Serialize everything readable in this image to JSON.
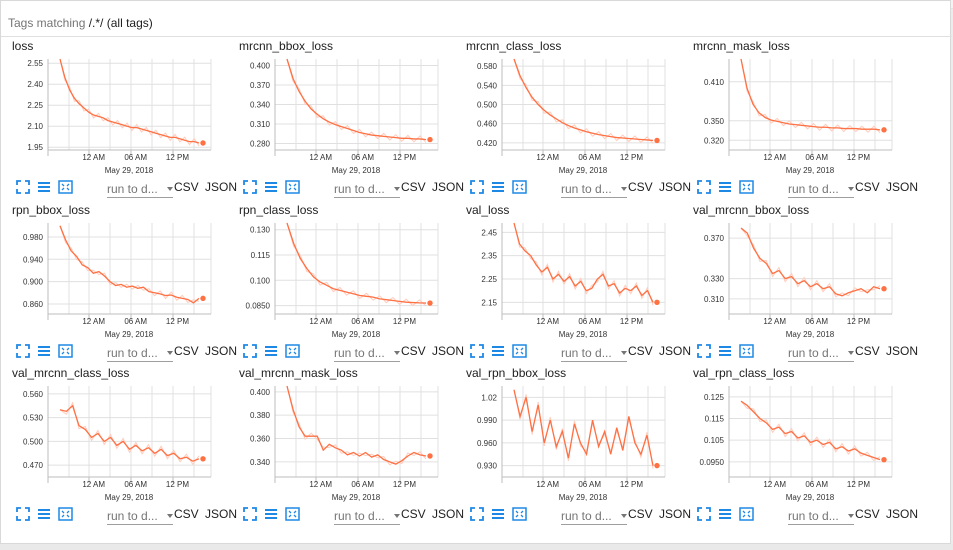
{
  "header": {
    "label_prefix": "Tags matching ",
    "regex": "/.*/",
    "suffix": "(all tags)"
  },
  "toolbar": {
    "run_select": "run to d...",
    "csv": "CSV",
    "json": "JSON"
  },
  "colors": {
    "line": "#ff7043",
    "raw": "#ffccbc",
    "grid": "#e0e0e0"
  },
  "icons": {
    "expand": "expand-icon",
    "lines": "toggle-lines-icon",
    "fit": "fit-domain-icon"
  },
  "charts": [
    {
      "title": "loss",
      "x_date": "May 29, 2018",
      "x_ticks": [
        "12 AM",
        "06 AM",
        "12 PM"
      ],
      "y_ticks": [
        "2.55",
        "2.40",
        "2.25",
        "2.10",
        "1.95"
      ],
      "y_range": [
        1.93,
        2.58
      ]
    },
    {
      "title": "mrcnn_bbox_loss",
      "x_date": "May 29, 2018",
      "x_ticks": [
        "12 AM",
        "06 AM",
        "12 PM"
      ],
      "y_ticks": [
        "0.400",
        "0.370",
        "0.340",
        "0.310",
        "0.280"
      ],
      "y_range": [
        0.27,
        0.41
      ]
    },
    {
      "title": "mrcnn_class_loss",
      "x_date": "May 29, 2018",
      "x_ticks": [
        "12 AM",
        "06 AM",
        "12 PM"
      ],
      "y_ticks": [
        "0.580",
        "0.540",
        "0.500",
        "0.460",
        "0.420"
      ],
      "y_range": [
        0.405,
        0.595
      ]
    },
    {
      "title": "mrcnn_mask_loss",
      "x_date": "May 29, 2018",
      "x_ticks": [
        "12 AM",
        "06 AM",
        "12 PM"
      ],
      "y_ticks": [
        "0.410",
        "0.350",
        "0.320"
      ],
      "y_range": [
        0.305,
        0.445
      ]
    },
    {
      "title": "rpn_bbox_loss",
      "x_date": "May 29, 2018",
      "x_ticks": [
        "12 AM",
        "06 AM",
        "12 PM"
      ],
      "y_ticks": [
        "0.980",
        "0.940",
        "0.900",
        "0.860"
      ],
      "y_range": [
        0.842,
        1.005
      ]
    },
    {
      "title": "rpn_class_loss",
      "x_date": "May 29, 2018",
      "x_ticks": [
        "12 AM",
        "06 AM",
        "12 PM"
      ],
      "y_ticks": [
        "0.130",
        "0.115",
        "0.100",
        "0.0850"
      ],
      "y_range": [
        0.08,
        0.134
      ]
    },
    {
      "title": "val_loss",
      "x_date": "May 29, 2018",
      "x_ticks": [
        "12 AM",
        "06 AM",
        "12 PM"
      ],
      "y_ticks": [
        "2.45",
        "2.35",
        "2.25",
        "2.15"
      ],
      "y_range": [
        2.1,
        2.49
      ]
    },
    {
      "title": "val_mrcnn_bbox_loss",
      "x_date": "May 29, 2018",
      "x_ticks": [
        "12 AM",
        "06 AM",
        "12 PM"
      ],
      "y_ticks": [
        "0.370",
        "0.330",
        "0.310"
      ],
      "y_range": [
        0.295,
        0.385
      ]
    },
    {
      "title": "val_mrcnn_class_loss",
      "x_date": "May 29, 2018",
      "x_ticks": [
        "12 AM",
        "06 AM",
        "12 PM"
      ],
      "y_ticks": [
        "0.560",
        "0.530",
        "0.500",
        "0.470"
      ],
      "y_range": [
        0.455,
        0.57
      ]
    },
    {
      "title": "val_mrcnn_mask_loss",
      "x_date": "May 29, 2018",
      "x_ticks": [
        "12 AM",
        "06 AM",
        "12 PM"
      ],
      "y_ticks": [
        "0.400",
        "0.380",
        "0.360",
        "0.340"
      ],
      "y_range": [
        0.327,
        0.405
      ]
    },
    {
      "title": "val_rpn_bbox_loss",
      "x_date": "May 29, 2018",
      "x_ticks": [
        "12 AM",
        "06 AM",
        "12 PM"
      ],
      "y_ticks": [
        "1.02",
        "0.990",
        "0.960",
        "0.930"
      ],
      "y_range": [
        0.915,
        1.035
      ]
    },
    {
      "title": "val_rpn_class_loss",
      "x_date": "May 29, 2018",
      "x_ticks": [
        "12 AM",
        "06 AM",
        "12 PM"
      ],
      "y_ticks": [
        "0.125",
        "0.115",
        "0.105",
        "0.0950"
      ],
      "y_range": [
        0.088,
        0.13
      ]
    }
  ],
  "chart_data": [
    {
      "type": "line",
      "title": "loss",
      "xlabel": "May 29, 2018",
      "ylim": [
        1.93,
        2.58
      ],
      "series": [
        {
          "values": [
            2.58,
            2.45,
            2.36,
            2.3,
            2.26,
            2.23,
            2.2,
            2.18,
            2.17,
            2.16,
            2.14,
            2.13,
            2.12,
            2.11,
            2.1,
            2.09,
            2.09,
            2.08,
            2.07,
            2.06,
            2.05,
            2.04,
            2.03,
            2.02,
            2.02,
            2.01,
            2.0,
            1.99,
            1.99,
            1.98
          ]
        }
      ]
    },
    {
      "type": "line",
      "title": "mrcnn_bbox_loss",
      "xlabel": "May 29, 2018",
      "ylim": [
        0.27,
        0.41
      ],
      "series": [
        {
          "values": [
            0.41,
            0.38,
            0.36,
            0.345,
            0.333,
            0.325,
            0.318,
            0.313,
            0.309,
            0.306,
            0.303,
            0.3,
            0.297,
            0.295,
            0.293,
            0.292,
            0.291,
            0.29,
            0.289,
            0.288,
            0.288,
            0.287,
            0.287,
            0.286
          ]
        }
      ]
    },
    {
      "type": "line",
      "title": "mrcnn_class_loss",
      "xlabel": "May 29, 2018",
      "ylim": [
        0.405,
        0.595
      ],
      "series": [
        {
          "values": [
            0.595,
            0.56,
            0.535,
            0.515,
            0.5,
            0.488,
            0.478,
            0.47,
            0.462,
            0.456,
            0.451,
            0.447,
            0.443,
            0.44,
            0.437,
            0.435,
            0.433,
            0.431,
            0.43,
            0.429,
            0.428,
            0.427,
            0.426,
            0.425
          ]
        }
      ]
    },
    {
      "type": "line",
      "title": "mrcnn_mask_loss",
      "xlabel": "May 29, 2018",
      "ylim": [
        0.305,
        0.445
      ],
      "series": [
        {
          "values": [
            0.445,
            0.4,
            0.375,
            0.362,
            0.355,
            0.351,
            0.349,
            0.347,
            0.345,
            0.344,
            0.343,
            0.342,
            0.341,
            0.34,
            0.34,
            0.339,
            0.339,
            0.338,
            0.338,
            0.338,
            0.337,
            0.337,
            0.337,
            0.336
          ]
        }
      ]
    },
    {
      "type": "line",
      "title": "rpn_bbox_loss",
      "xlabel": "May 29, 2018",
      "ylim": [
        0.842,
        1.005
      ],
      "series": [
        {
          "values": [
            1.0,
            0.975,
            0.955,
            0.945,
            0.93,
            0.925,
            0.915,
            0.918,
            0.91,
            0.9,
            0.893,
            0.895,
            0.89,
            0.892,
            0.888,
            0.89,
            0.882,
            0.88,
            0.878,
            0.875,
            0.876,
            0.872,
            0.87,
            0.868,
            0.862,
            0.87
          ]
        }
      ]
    },
    {
      "type": "line",
      "title": "rpn_class_loss",
      "xlabel": "May 29, 2018",
      "ylim": [
        0.08,
        0.134
      ],
      "series": [
        {
          "values": [
            0.134,
            0.122,
            0.113,
            0.107,
            0.102,
            0.099,
            0.097,
            0.095,
            0.094,
            0.093,
            0.092,
            0.091,
            0.0905,
            0.09,
            0.089,
            0.0885,
            0.088,
            0.0875,
            0.087,
            0.0868,
            0.0866,
            0.0865
          ]
        }
      ]
    },
    {
      "type": "line",
      "title": "val_loss",
      "xlabel": "May 29, 2018",
      "ylim": [
        2.1,
        2.49
      ],
      "series": [
        {
          "values": [
            2.49,
            2.4,
            2.37,
            2.35,
            2.31,
            2.28,
            2.3,
            2.25,
            2.27,
            2.24,
            2.26,
            2.22,
            2.24,
            2.2,
            2.21,
            2.25,
            2.27,
            2.22,
            2.23,
            2.19,
            2.21,
            2.2,
            2.22,
            2.18,
            2.2,
            2.15
          ]
        }
      ]
    },
    {
      "type": "line",
      "title": "val_mrcnn_bbox_loss",
      "xlabel": "May 29, 2018",
      "ylim": [
        0.295,
        0.385
      ],
      "series": [
        {
          "values": [
            0.38,
            0.375,
            0.36,
            0.35,
            0.345,
            0.335,
            0.338,
            0.33,
            0.332,
            0.325,
            0.328,
            0.322,
            0.325,
            0.32,
            0.322,
            0.315,
            0.313,
            0.316,
            0.318,
            0.32,
            0.316,
            0.322,
            0.32
          ]
        }
      ]
    },
    {
      "type": "line",
      "title": "val_mrcnn_class_loss",
      "xlabel": "May 29, 2018",
      "ylim": [
        0.455,
        0.57
      ],
      "series": [
        {
          "values": [
            0.54,
            0.538,
            0.545,
            0.52,
            0.515,
            0.505,
            0.51,
            0.5,
            0.505,
            0.495,
            0.5,
            0.49,
            0.495,
            0.488,
            0.492,
            0.485,
            0.49,
            0.482,
            0.485,
            0.478,
            0.48,
            0.475,
            0.478
          ]
        }
      ]
    },
    {
      "type": "line",
      "title": "val_mrcnn_mask_loss",
      "xlabel": "May 29, 2018",
      "ylim": [
        0.327,
        0.405
      ],
      "series": [
        {
          "values": [
            0.405,
            0.385,
            0.37,
            0.362,
            0.362,
            0.362,
            0.35,
            0.355,
            0.352,
            0.35,
            0.346,
            0.348,
            0.345,
            0.348,
            0.344,
            0.346,
            0.342,
            0.34,
            0.338,
            0.341,
            0.345,
            0.348,
            0.346,
            0.345
          ]
        }
      ]
    },
    {
      "type": "line",
      "title": "val_rpn_bbox_loss",
      "xlabel": "May 29, 2018",
      "ylim": [
        0.915,
        1.035
      ],
      "series": [
        {
          "values": [
            1.03,
            0.995,
            1.02,
            0.975,
            1.01,
            0.96,
            0.99,
            0.955,
            0.975,
            0.94,
            0.985,
            0.96,
            0.945,
            0.99,
            0.955,
            0.975,
            0.945,
            0.98,
            0.95,
            0.995,
            0.96,
            0.945,
            0.97,
            0.93
          ]
        }
      ]
    },
    {
      "type": "line",
      "title": "val_rpn_class_loss",
      "xlabel": "May 29, 2018",
      "ylim": [
        0.088,
        0.13
      ],
      "series": [
        {
          "values": [
            0.123,
            0.121,
            0.118,
            0.115,
            0.113,
            0.11,
            0.111,
            0.108,
            0.109,
            0.106,
            0.107,
            0.104,
            0.105,
            0.103,
            0.104,
            0.101,
            0.102,
            0.1,
            0.101,
            0.099,
            0.098,
            0.097,
            0.096
          ]
        }
      ]
    }
  ]
}
